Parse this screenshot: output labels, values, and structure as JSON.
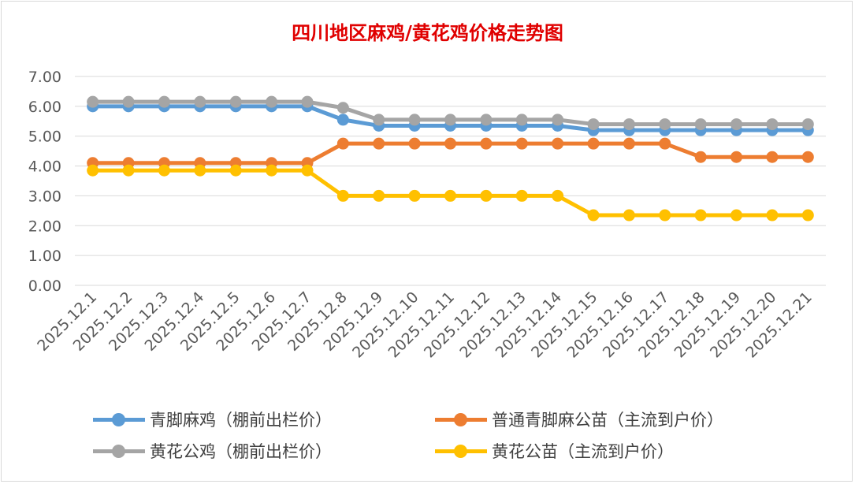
{
  "chart_data": {
    "type": "line",
    "title": "四川地区麻鸡/黄花鸡价格走势图",
    "categories": [
      "2025.12.1",
      "2025.12.2",
      "2025.12.3",
      "2025.12.4",
      "2025.12.5",
      "2025.12.6",
      "2025.12.7",
      "2025.12.8",
      "2025.12.9",
      "2025.12.10",
      "2025.12.11",
      "2025.12.12",
      "2025.12.13",
      "2025.12.14",
      "2025.12.15",
      "2025.12.16",
      "2025.12.17",
      "2025.12.18",
      "2025.12.19",
      "2025.12.20",
      "2025.12.21"
    ],
    "ylim": [
      0,
      7
    ],
    "yticks": [
      "0.00",
      "1.00",
      "2.00",
      "3.00",
      "4.00",
      "5.00",
      "6.00",
      "7.00"
    ],
    "grid": true,
    "legend_position": "bottom",
    "series": [
      {
        "name": "青脚麻鸡（棚前出栏价）",
        "color": "#5b9bd5",
        "values": [
          6.0,
          6.0,
          6.0,
          6.0,
          6.0,
          6.0,
          6.0,
          5.55,
          5.35,
          5.35,
          5.35,
          5.35,
          5.35,
          5.35,
          5.2,
          5.2,
          5.2,
          5.2,
          5.2,
          5.2,
          5.2
        ]
      },
      {
        "name": "普通青脚麻公苗（主流到户价）",
        "color": "#ed7d31",
        "values": [
          4.1,
          4.1,
          4.1,
          4.1,
          4.1,
          4.1,
          4.1,
          4.75,
          4.75,
          4.75,
          4.75,
          4.75,
          4.75,
          4.75,
          4.75,
          4.75,
          4.75,
          4.3,
          4.3,
          4.3,
          4.3
        ]
      },
      {
        "name": "黄花公鸡（棚前出栏价）",
        "color": "#a5a5a5",
        "values": [
          6.15,
          6.15,
          6.15,
          6.15,
          6.15,
          6.15,
          6.15,
          5.95,
          5.55,
          5.55,
          5.55,
          5.55,
          5.55,
          5.55,
          5.4,
          5.4,
          5.4,
          5.4,
          5.4,
          5.4,
          5.4
        ]
      },
      {
        "name": "黄花公苗（主流到户价）",
        "color": "#ffc000",
        "values": [
          3.85,
          3.85,
          3.85,
          3.85,
          3.85,
          3.85,
          3.85,
          3.0,
          3.0,
          3.0,
          3.0,
          3.0,
          3.0,
          3.0,
          2.35,
          2.35,
          2.35,
          2.35,
          2.35,
          2.35,
          2.35
        ]
      }
    ]
  }
}
